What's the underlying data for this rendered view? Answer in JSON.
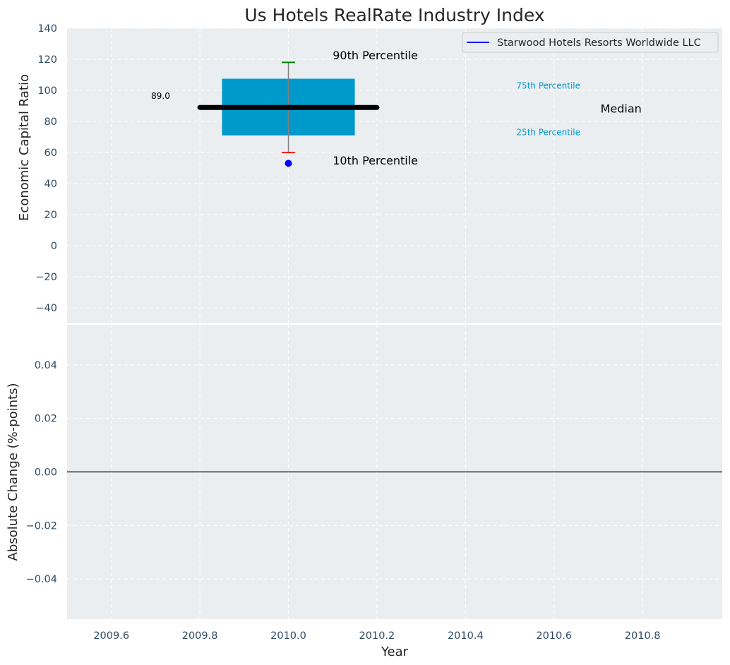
{
  "chart_data": [
    {
      "type": "box",
      "title": "Us Hotels RealRate Industry Index",
      "ylabel": "Economic Capital Ratio",
      "ylim": [
        -50,
        140
      ],
      "yticks": [
        140,
        120,
        100,
        80,
        60,
        40,
        20,
        0,
        -20,
        -40
      ],
      "ytick_labels": [
        "140",
        "120",
        "100",
        "80",
        "60",
        "40",
        "20",
        "0",
        "−20",
        "−40"
      ],
      "grid": true,
      "legend_position": "top-right",
      "box": {
        "x": 2010.0,
        "p10": 60,
        "p25": 71,
        "median": 89,
        "p75": 107.5,
        "p90": 118
      },
      "median_label": "89.0",
      "series": [
        {
          "name": "Starwood Hotels Resorts Worldwide LLC",
          "x": [
            2010.0
          ],
          "y": [
            53
          ],
          "color": "#0000ff"
        }
      ],
      "annotations": {
        "p90": "90th Percentile",
        "p10": "10th Percentile",
        "p75": "75th Percentile",
        "p25": "25th Percentile",
        "median": "Median"
      }
    },
    {
      "type": "line",
      "xlabel": "Year",
      "ylabel": "Absolute Change (%-points)",
      "xlim": [
        2009.5,
        2010.98
      ],
      "xticks": [
        2009.6,
        2009.8,
        2010.0,
        2010.2,
        2010.4,
        2010.6,
        2010.8
      ],
      "xtick_labels": [
        "2009.6",
        "2009.8",
        "2010.0",
        "2010.2",
        "2010.4",
        "2010.6",
        "2010.8"
      ],
      "ylim": [
        -0.055,
        0.055
      ],
      "yticks": [
        0.04,
        0.02,
        0.0,
        -0.02,
        -0.04
      ],
      "ytick_labels": [
        "0.04",
        "0.02",
        "0.00",
        "−0.02",
        "−0.04"
      ],
      "grid": true,
      "reference_line": 0
    }
  ],
  "colors": {
    "background": "#eaeef0",
    "grid": "#ffffff",
    "box_fill": "#0099cc",
    "median_line": "#000000",
    "whisker": "#808080",
    "p90_cap": "#008000",
    "p10_cap": "#ff0000",
    "company_point": "#0000ff",
    "percentile_label": "#0099cc",
    "tick_text": "#2e4a62"
  }
}
